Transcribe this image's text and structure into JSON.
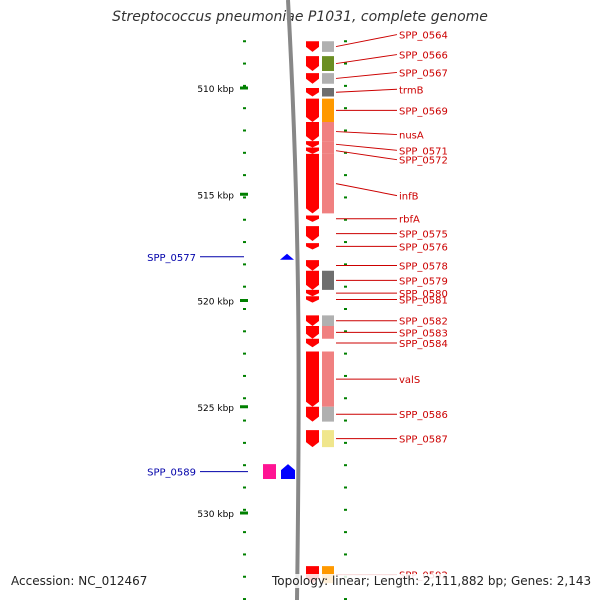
{
  "title": "Streptococcus pneumoniae P1031, complete genome",
  "accession": "Accession: NC_012467",
  "summary": "Topology: linear; Length: 2,111,882 bp; Genes: 2,143",
  "colors": {
    "red": "#ff0000",
    "pink": "#f08080",
    "gray": "#b0b0b0",
    "darkgray": "#6e6e6e",
    "olive": "#6b8e23",
    "orange": "#ff9900",
    "yellow": "#f0e68c",
    "teal": "#00d0d0",
    "blue": "#0000ff",
    "magenta": "#ff1493",
    "green": "#008000",
    "label_red": "#cc0000",
    "label_blue": "#0000aa"
  },
  "scale": [
    {
      "label": "510 kbp",
      "kbp": 510
    },
    {
      "label": "515 kbp",
      "kbp": 515
    },
    {
      "label": "520 kbp",
      "kbp": 520
    },
    {
      "label": "525 kbp",
      "kbp": 525
    },
    {
      "label": "530 kbp",
      "kbp": 530
    }
  ],
  "genes": [
    {
      "name": "SPP_0564",
      "strand": "forward",
      "start": 507.8,
      "end": 508.3,
      "color": "gray"
    },
    {
      "name": "SPP_0566",
      "strand": "forward",
      "start": 508.5,
      "end": 509.2,
      "color": "olive"
    },
    {
      "name": "SPP_0567",
      "strand": "forward",
      "start": 509.3,
      "end": 509.8,
      "color": "gray"
    },
    {
      "name": "trmB",
      "strand": "forward",
      "start": 510.0,
      "end": 510.4,
      "color": "darkgray"
    },
    {
      "name": "SPP_0569",
      "strand": "forward",
      "start": 510.5,
      "end": 511.6,
      "color": "orange"
    },
    {
      "name": "nusA",
      "strand": "forward",
      "start": 511.6,
      "end": 512.5,
      "color": "pink"
    },
    {
      "name": "SPP_0571",
      "strand": "forward",
      "start": 512.5,
      "end": 512.8,
      "color": "pink"
    },
    {
      "name": "SPP_0572",
      "strand": "forward",
      "start": 512.8,
      "end": 513.1,
      "color": "pink"
    },
    {
      "name": "infB",
      "strand": "forward",
      "start": 513.1,
      "end": 515.9,
      "color": "pink"
    },
    {
      "name": "rbfA",
      "strand": "forward",
      "start": 516.0,
      "end": 516.3,
      "color": "red"
    },
    {
      "name": "SPP_0575",
      "strand": "forward",
      "start": 516.5,
      "end": 517.2,
      "color": "red"
    },
    {
      "name": "SPP_0576",
      "strand": "forward",
      "start": 517.3,
      "end": 517.6,
      "color": "red"
    },
    {
      "name": "SPP_0577",
      "strand": "reverse",
      "start": 517.8,
      "end": 518.0,
      "color": "blue"
    },
    {
      "name": "SPP_0578",
      "strand": "forward",
      "start": 518.1,
      "end": 518.6,
      "color": "red"
    },
    {
      "name": "SPP_0579",
      "strand": "forward",
      "start": 518.6,
      "end": 519.5,
      "color": "darkgray"
    },
    {
      "name": "SPP_0580",
      "strand": "forward",
      "start": 519.5,
      "end": 519.8,
      "color": "red"
    },
    {
      "name": "SPP_0581",
      "strand": "forward",
      "start": 519.8,
      "end": 520.1,
      "color": "red"
    },
    {
      "name": "SPP_0582",
      "strand": "forward",
      "start": 520.7,
      "end": 521.2,
      "color": "gray"
    },
    {
      "name": "SPP_0583",
      "strand": "forward",
      "start": 521.2,
      "end": 521.8,
      "color": "pink"
    },
    {
      "name": "SPP_0584",
      "strand": "forward",
      "start": 521.8,
      "end": 522.2,
      "color": "red"
    },
    {
      "name": "valS",
      "strand": "forward",
      "start": 522.4,
      "end": 525.0,
      "color": "pink"
    },
    {
      "name": "SPP_0586",
      "strand": "forward",
      "start": 525.0,
      "end": 525.7,
      "color": "gray"
    },
    {
      "name": "SPP_0587",
      "strand": "forward",
      "start": 526.1,
      "end": 526.9,
      "color": "yellow"
    },
    {
      "name": "SPP_0589",
      "strand": "reverse",
      "start": 527.7,
      "end": 528.4,
      "color": "magenta"
    },
    {
      "name": "SPP_0592",
      "strand": "forward",
      "start": 532.5,
      "end": 533.3,
      "color": "orange"
    }
  ]
}
